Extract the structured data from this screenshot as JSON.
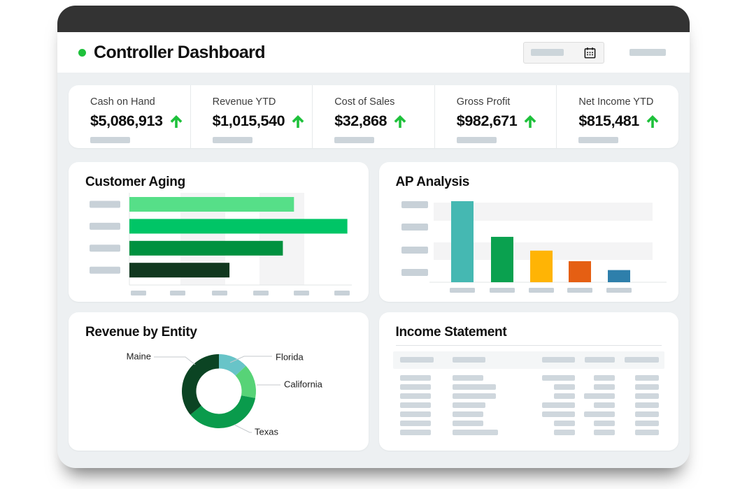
{
  "colors": {
    "accent_green": "#1ec13b",
    "window_chrome": "#333333",
    "body_background": "#edf0f2",
    "placeholder_gray": "#ccd4da",
    "tick_placeholder_gray": "#c8d1d8",
    "table_placeholder_gray": "#cfd7dd",
    "stripe_gray": "#f4f4f5",
    "axis_gray": "#e2e4e6",
    "leader_line_gray": "#c5cacd"
  },
  "header": {
    "title": "Controller Dashboard",
    "date_picker": {
      "type": "placeholder-field",
      "icon": "calendar"
    },
    "right_placeholder": true
  },
  "kpis": [
    {
      "label": "Cash on Hand",
      "value": "$5,086,913",
      "trend": "up"
    },
    {
      "label": "Revenue YTD",
      "value": "$1,015,540",
      "trend": "up"
    },
    {
      "label": "Cost of Sales",
      "value": "$32,868",
      "trend": "up"
    },
    {
      "label": "Gross Profit",
      "value": "$982,671",
      "trend": "up"
    },
    {
      "label": "Net Income YTD",
      "value": "$815,481",
      "trend": "up"
    }
  ],
  "chart_data": [
    {
      "id": "customer_aging",
      "type": "bar",
      "orientation": "horizontal",
      "title": "Customer Aging",
      "note": "axis tick and category labels are rendered as gray placeholder bars (no text visible)",
      "categories": [
        "placeholder-1",
        "placeholder-2",
        "placeholder-3",
        "placeholder-4"
      ],
      "values_pct_of_axis": [
        74,
        98,
        69,
        45
      ],
      "colors": [
        "#56df88",
        "#00c566",
        "#00913f",
        "#11381f"
      ],
      "y_tick_placeholders": 4,
      "x_tick_placeholders": 6,
      "grid": "two vertical stripe bands",
      "legend_position": "none"
    },
    {
      "id": "ap_analysis",
      "type": "bar",
      "orientation": "vertical",
      "title": "AP Analysis",
      "note": "axis tick and category labels are rendered as gray placeholder bars (no text visible)",
      "categories": [
        "placeholder-1",
        "placeholder-2",
        "placeholder-3",
        "placeholder-4",
        "placeholder-5"
      ],
      "values_pct_of_axis": [
        100,
        56,
        39,
        26,
        15
      ],
      "colors": [
        "#45b8b2",
        "#0aa14f",
        "#ffb405",
        "#e55f13",
        "#2e7fab"
      ],
      "y_tick_placeholders": 4,
      "x_tick_placeholders": 5,
      "grid": "two horizontal stripe bands",
      "legend_position": "none"
    },
    {
      "id": "revenue_by_entity",
      "type": "pie",
      "donut": true,
      "title": "Revenue by Entity",
      "labels": [
        "Florida",
        "California",
        "Texas",
        "Maine"
      ],
      "values_pct": [
        13,
        15,
        36,
        36
      ],
      "colors": [
        "#68c4c8",
        "#57d377",
        "#0a9b4c",
        "#0b4423"
      ],
      "legend_position": "callout-labels-with-leader-lines"
    }
  ],
  "income_statement": {
    "title": "Income Statement",
    "note": "table content is rendered as gray placeholder bars (no text visible)",
    "columns": 5,
    "header_bar_widths": [
      48,
      47,
      47,
      43,
      49
    ],
    "row_bar_widths": [
      [
        44,
        44,
        47,
        30,
        34
      ],
      [
        44,
        62,
        30,
        30,
        34
      ],
      [
        44,
        62,
        30,
        44,
        34
      ],
      [
        44,
        47,
        47,
        30,
        34
      ],
      [
        44,
        44,
        47,
        44,
        34
      ],
      [
        44,
        44,
        30,
        30,
        34
      ],
      [
        44,
        65,
        30,
        30,
        34
      ]
    ]
  }
}
